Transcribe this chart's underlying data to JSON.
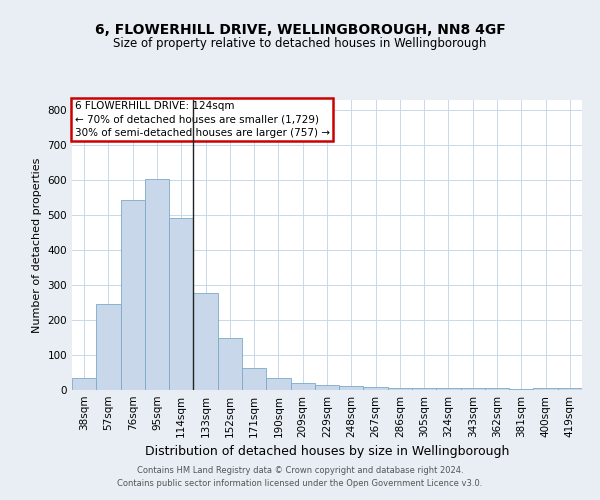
{
  "title": "6, FLOWERHILL DRIVE, WELLINGBOROUGH, NN8 4GF",
  "subtitle": "Size of property relative to detached houses in Wellingborough",
  "xlabel": "Distribution of detached houses by size in Wellingborough",
  "ylabel": "Number of detached properties",
  "footer_line1": "Contains HM Land Registry data © Crown copyright and database right 2024.",
  "footer_line2": "Contains public sector information licensed under the Open Government Licence v3.0.",
  "categories": [
    "38sqm",
    "57sqm",
    "76sqm",
    "95sqm",
    "114sqm",
    "133sqm",
    "152sqm",
    "171sqm",
    "190sqm",
    "209sqm",
    "229sqm",
    "248sqm",
    "267sqm",
    "286sqm",
    "305sqm",
    "324sqm",
    "343sqm",
    "362sqm",
    "381sqm",
    "400sqm",
    "419sqm"
  ],
  "values": [
    35,
    247,
    543,
    604,
    492,
    278,
    148,
    63,
    33,
    20,
    15,
    12,
    10,
    7,
    6,
    6,
    5,
    5,
    2,
    5,
    7
  ],
  "bar_color": "#c8d8ea",
  "bar_edge_color": "#7aaac8",
  "annotation_title": "6 FLOWERHILL DRIVE: 124sqm",
  "annotation_line1": "← 70% of detached houses are smaller (1,729)",
  "annotation_line2": "30% of semi-detached houses are larger (757) →",
  "annotation_box_facecolor": "#ffffff",
  "annotation_box_edgecolor": "#cc0000",
  "vline_x": 4.5,
  "ylim": [
    0,
    830
  ],
  "yticks": [
    0,
    100,
    200,
    300,
    400,
    500,
    600,
    700,
    800
  ],
  "background_color": "#e8eef4",
  "plot_bg_color": "#ffffff",
  "grid_color": "#c8d8ea",
  "title_fontsize": 10,
  "subtitle_fontsize": 8.5,
  "xlabel_fontsize": 9,
  "ylabel_fontsize": 8,
  "tick_fontsize": 7.5,
  "footer_fontsize": 6,
  "annotation_fontsize": 7.5
}
